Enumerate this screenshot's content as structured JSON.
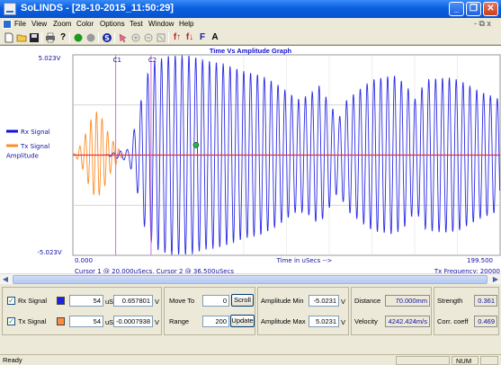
{
  "window": {
    "title": "SoLINDS - [28-10-2015_11:50:29]",
    "min_glyph": "_",
    "max_glyph": "❐",
    "close_glyph": "✕"
  },
  "menu": {
    "items": [
      "File",
      "View",
      "Zoom",
      "Color",
      "Options",
      "Test",
      "Window",
      "Help"
    ],
    "mdi_controls": "- ⧉ x"
  },
  "toolbar": {
    "icons": [
      "new-icon",
      "open-icon",
      "save-icon",
      "print-icon",
      "help-icon",
      "record-icon",
      "stop-icon",
      "scan-icon",
      "cursor-icon",
      "zoom-in-icon",
      "zoom-out-icon",
      "fit-icon",
      "trace-up-icon",
      "trace-down-icon",
      "font-icon",
      "text-icon"
    ],
    "f_label": "F",
    "a_label": "A"
  },
  "chart_data": {
    "type": "line",
    "title": "Time Vs Amplitude Graph",
    "xlabel": "Time in uSecs -->",
    "ylabel": "Amplitude",
    "y_top_label": "5.023V",
    "y_bottom_label": "-5.023V",
    "x_start_label": "0.000",
    "x_end_label": "199.500",
    "xlim": [
      0,
      199.5
    ],
    "ylim": [
      -5.023,
      5.023
    ],
    "grid": true,
    "cursors": [
      {
        "name": "C1",
        "x": 20.0
      },
      {
        "name": "C2",
        "x": 36.5
      }
    ],
    "marker": {
      "x": 57.5,
      "y": 0.5
    },
    "legend": [
      {
        "name": "Rx Signal",
        "color": "#1010e0"
      },
      {
        "name": "Tx Signal",
        "color": "#ff8c28"
      }
    ],
    "series": [
      {
        "name": "Rx Signal",
        "color": "#2a2ae6",
        "start": 15,
        "end": 199.5,
        "period": 3.2,
        "envelope": [
          [
            15,
            0
          ],
          [
            20,
            0.15
          ],
          [
            26,
            0.3
          ],
          [
            30,
            1.8
          ],
          [
            34,
            3.9
          ],
          [
            38,
            4.7
          ],
          [
            45,
            5.0
          ],
          [
            55,
            5.0
          ],
          [
            60,
            4.8
          ],
          [
            70,
            4.6
          ],
          [
            80,
            4.2
          ],
          [
            88,
            4.0
          ],
          [
            95,
            3.6
          ],
          [
            100,
            3.2
          ],
          [
            105,
            2.8
          ],
          [
            110,
            3.0
          ],
          [
            115,
            3.5
          ],
          [
            120,
            2.6
          ],
          [
            124,
            1.8
          ],
          [
            128,
            2.8
          ],
          [
            135,
            3.4
          ],
          [
            140,
            3.8
          ],
          [
            150,
            4.0
          ],
          [
            155,
            3.6
          ],
          [
            160,
            2.8
          ],
          [
            165,
            3.8
          ],
          [
            175,
            3.9
          ],
          [
            180,
            3.8
          ],
          [
            190,
            3.2
          ],
          [
            199.5,
            2.8
          ]
        ]
      },
      {
        "name": "Tx Signal",
        "color": "#ff8c28",
        "start": 0,
        "end": 24,
        "period": 2.6,
        "envelope": [
          [
            0,
            0
          ],
          [
            2,
            0.2
          ],
          [
            5,
            0.8
          ],
          [
            8,
            1.7
          ],
          [
            11,
            2.2
          ],
          [
            14,
            1.8
          ],
          [
            17,
            1.0
          ],
          [
            20,
            0.5
          ],
          [
            23,
            0.1
          ],
          [
            24,
            0
          ]
        ]
      }
    ],
    "cursor_info": "Cursor 1 @ 20.000uSecs, Cursor 2 @ 36.500uSecs",
    "tx_frequency": "Tx Frequency: 20000",
    "y_axis_scaling": "Y Axis Scaling : Auto",
    "amplitude_line_color": "#e0303a"
  },
  "controls": {
    "rx": {
      "label": "Rx Signal",
      "value": "54",
      "unit_s": "uS",
      "voltage": "0.657801",
      "unit_v": "V",
      "checked": "✓",
      "color": "#2020e0"
    },
    "tx": {
      "label": "Tx Signal",
      "value": "54",
      "unit_s": "uS",
      "voltage": "-0.0007938",
      "unit_v": "V",
      "checked": "✓",
      "color": "#ff8c3c"
    },
    "move_to": {
      "label": "Move To",
      "value": "0",
      "button": "Scroll"
    },
    "range": {
      "label": "Range",
      "value": "200",
      "button": "Update"
    },
    "amp_min": {
      "label": "Amplitude Min",
      "value": "-5.0231",
      "unit": "V"
    },
    "amp_max": {
      "label": "Amplitude Max",
      "value": "5.0231",
      "unit": "V"
    },
    "distance": {
      "label": "Distance",
      "value": "70.000mm"
    },
    "velocity": {
      "label": "Velocity",
      "value": "4242.424m/s"
    },
    "strength": {
      "label": "Strength",
      "value": "0.361"
    },
    "corr_coeff": {
      "label": "Corr. coeff",
      "value": "0.469"
    }
  },
  "statusbar": {
    "status": "Ready",
    "num": "NUM"
  }
}
